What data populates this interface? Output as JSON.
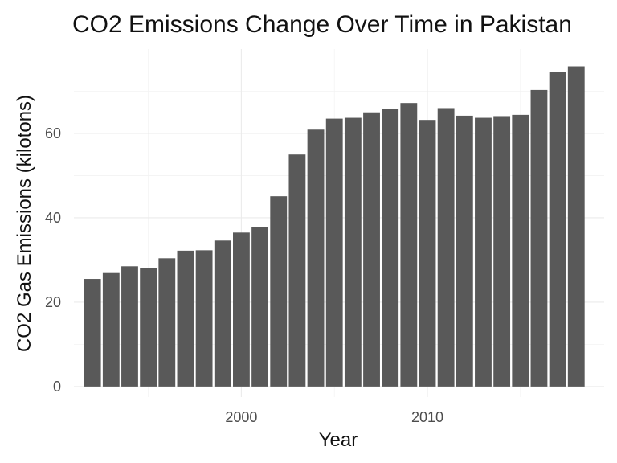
{
  "chart_data": {
    "type": "bar",
    "title": "CO2 Emissions Change Over Time in Pakistan",
    "xlabel": "Year",
    "ylabel": "CO2 Gas Emissions (kilotons)",
    "x_ticks": [
      2000,
      2010
    ],
    "y_ticks": [
      0,
      20,
      40,
      60
    ],
    "xlim": [
      1991,
      2019.5
    ],
    "ylim": [
      -2.5,
      80
    ],
    "grid": true,
    "bar_color": "#595959",
    "categories": [
      1992,
      1993,
      1994,
      1995,
      1996,
      1997,
      1998,
      1999,
      2000,
      2001,
      2002,
      2003,
      2004,
      2005,
      2006,
      2007,
      2008,
      2009,
      2010,
      2011,
      2012,
      2013,
      2014,
      2015,
      2016,
      2017,
      2018
    ],
    "values": [
      25.5,
      26.9,
      28.5,
      28.1,
      30.4,
      32.2,
      32.3,
      34.6,
      36.5,
      37.8,
      45.1,
      55.0,
      60.9,
      63.5,
      63.7,
      65.0,
      65.8,
      67.2,
      63.2,
      66.0,
      64.2,
      63.7,
      64.1,
      64.4,
      70.3,
      74.5,
      75.9
    ]
  }
}
